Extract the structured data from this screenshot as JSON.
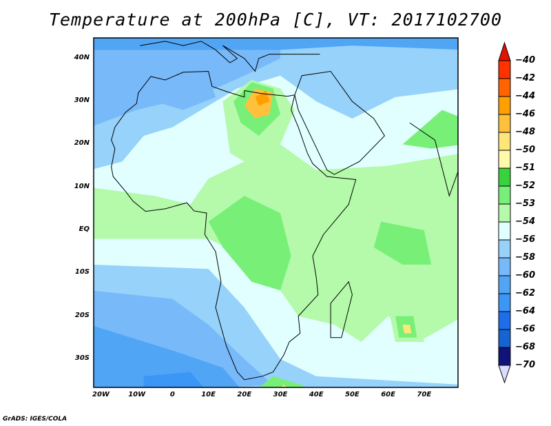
{
  "title": "Temperature at 200hPa [C], VT: 2017102700",
  "credit": "GrADS: IGES/COLA",
  "lat_labels": [
    {
      "text": "40N",
      "lat": 40
    },
    {
      "text": "30N",
      "lat": 30
    },
    {
      "text": "20N",
      "lat": 20
    },
    {
      "text": "10N",
      "lat": 10
    },
    {
      "text": "EQ",
      "lat": 0
    },
    {
      "text": "10S",
      "lat": -10
    },
    {
      "text": "20S",
      "lat": -20
    },
    {
      "text": "30S",
      "lat": -30
    }
  ],
  "lon_labels": [
    {
      "text": "20W",
      "lon": -20
    },
    {
      "text": "10W",
      "lon": -10
    },
    {
      "text": "0",
      "lon": 0
    },
    {
      "text": "10E",
      "lon": 10
    },
    {
      "text": "20E",
      "lon": 20
    },
    {
      "text": "30E",
      "lon": 30
    },
    {
      "text": "40E",
      "lon": 40
    },
    {
      "text": "50E",
      "lon": 50
    },
    {
      "text": "60E",
      "lon": 60
    },
    {
      "text": "70E",
      "lon": 70
    }
  ],
  "colorbar": {
    "labels": [
      "-40",
      "-42",
      "-44",
      "-46",
      "-48",
      "-50",
      "-51",
      "-52",
      "-53",
      "-54",
      "-56",
      "-58",
      "-60",
      "-62",
      "-64",
      "-66",
      "-68",
      "-70"
    ],
    "top_color": "#e11400",
    "bottom_color": "#dcdcff",
    "colors": [
      "#ff3200",
      "#ff6400",
      "#ffa000",
      "#ffc03c",
      "#ffe678",
      "#fffaaa",
      "#37d23c",
      "#78f078",
      "#b4faaa",
      "#e1ffff",
      "#96d2fa",
      "#78b9fa",
      "#50a5f5",
      "#3c96f5",
      "#1e6eeb",
      "#1464d2",
      "#0f1478"
    ]
  }
}
